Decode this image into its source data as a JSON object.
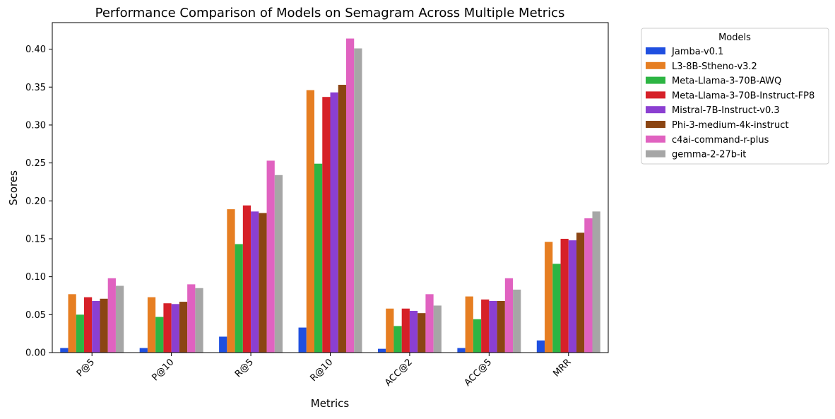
{
  "chart_data": {
    "type": "bar",
    "title": "Performance Comparison of Models on Semagram Across Multiple Metrics",
    "xlabel": "Metrics",
    "ylabel": "Scores",
    "ylim": [
      0,
      0.435
    ],
    "yticks": [
      0.0,
      0.05,
      0.1,
      0.15,
      0.2,
      0.25,
      0.3,
      0.35,
      0.4
    ],
    "ytick_labels": [
      "0.00",
      "0.05",
      "0.10",
      "0.15",
      "0.20",
      "0.25",
      "0.30",
      "0.35",
      "0.40"
    ],
    "categories": [
      "P@5",
      "P@10",
      "R@5",
      "R@10",
      "ACC@2",
      "ACC@5",
      "MRR"
    ],
    "legend_title": "Models",
    "legend_position": "outside-top-right",
    "grid": false,
    "series": [
      {
        "name": "Jamba-v0.1",
        "color": "#1f4fe0",
        "values": [
          0.006,
          0.006,
          0.021,
          0.033,
          0.005,
          0.006,
          0.016
        ]
      },
      {
        "name": "L3-8B-Stheno-v3.2",
        "color": "#e67e22",
        "values": [
          0.077,
          0.073,
          0.189,
          0.346,
          0.058,
          0.074,
          0.146
        ]
      },
      {
        "name": "Meta-Llama-3-70B-AWQ",
        "color": "#2db543",
        "values": [
          0.05,
          0.047,
          0.143,
          0.249,
          0.035,
          0.044,
          0.117
        ]
      },
      {
        "name": "Meta-Llama-3-70B-Instruct-FP8",
        "color": "#d62028",
        "values": [
          0.073,
          0.065,
          0.194,
          0.337,
          0.058,
          0.07,
          0.15
        ]
      },
      {
        "name": "Mistral-7B-Instruct-v0.3",
        "color": "#8b3fd1",
        "values": [
          0.068,
          0.064,
          0.186,
          0.343,
          0.055,
          0.068,
          0.148
        ]
      },
      {
        "name": "Phi-3-medium-4k-instruct",
        "color": "#8b4513",
        "values": [
          0.071,
          0.067,
          0.184,
          0.353,
          0.052,
          0.068,
          0.158
        ]
      },
      {
        "name": "c4ai-command-r-plus",
        "color": "#e062c0",
        "values": [
          0.098,
          0.09,
          0.253,
          0.414,
          0.077,
          0.098,
          0.177
        ]
      },
      {
        "name": "gemma-2-27b-it",
        "color": "#a6a6a6",
        "values": [
          0.088,
          0.085,
          0.234,
          0.401,
          0.062,
          0.083,
          0.186
        ]
      }
    ]
  }
}
